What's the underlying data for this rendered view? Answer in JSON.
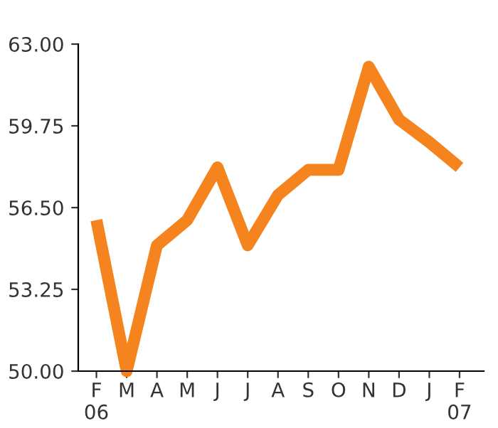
{
  "chart_data": {
    "type": "line",
    "categories": [
      "F\n06",
      "M",
      "A",
      "M",
      "J",
      "J",
      "A",
      "S",
      "O",
      "N",
      "D",
      "J",
      "F\n07"
    ],
    "series": [
      {
        "color": "#f5841f",
        "values": [
          56.0,
          50.0,
          55.0,
          56.0,
          58.1,
          55.0,
          57.0,
          58.0,
          58.0,
          62.1,
          60.0,
          59.1,
          58.1
        ]
      }
    ],
    "ylim": [
      50,
      63
    ],
    "yticks": [
      {
        "value": 50,
        "label": "50.00"
      },
      {
        "value": 53.25,
        "label": "53.25"
      },
      {
        "value": 56.5,
        "label": "56.50"
      },
      {
        "value": 59.75,
        "label": "59.75"
      },
      {
        "value": 63,
        "label": "63.00"
      }
    ],
    "grid": false,
    "legend": false,
    "marker": "none",
    "line_style": "solid"
  }
}
